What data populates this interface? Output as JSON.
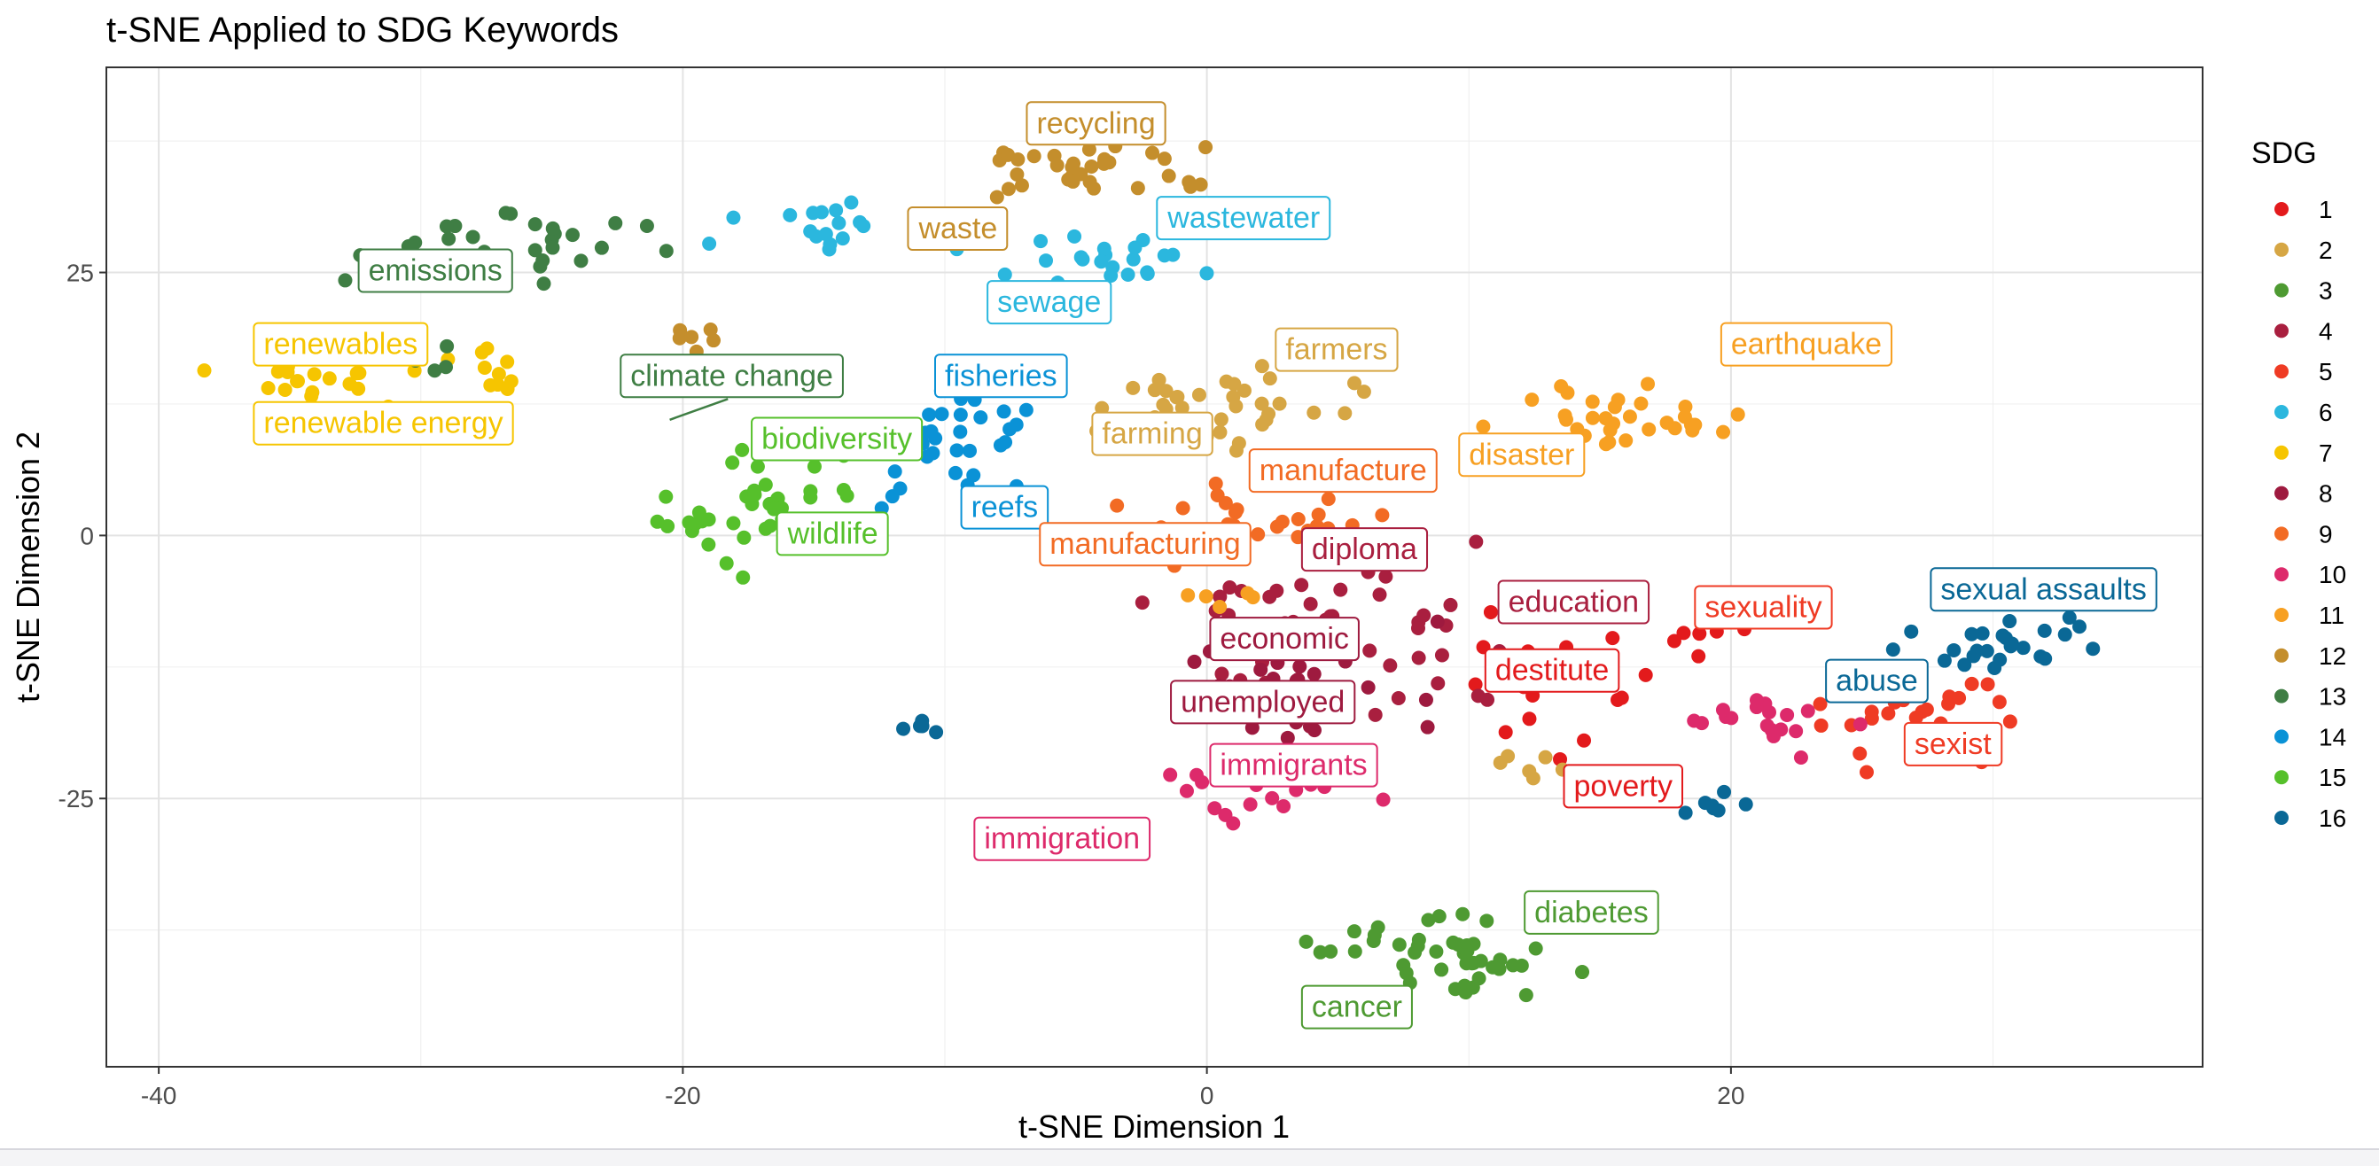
{
  "chart_data": {
    "type": "scatter",
    "title": "t-SNE Applied to SDG Keywords",
    "xlabel": "t-SNE Dimension 1",
    "ylabel": "t-SNE Dimension 2",
    "xlim": [
      -42,
      38
    ],
    "ylim": [
      -50.5,
      44.5
    ],
    "xticks": [
      -40,
      -20,
      0,
      20
    ],
    "yticks": [
      -25,
      0,
      25
    ],
    "x_tick_labels": [
      "-40",
      "-20",
      "0",
      "20"
    ],
    "y_tick_labels": [
      "-25",
      "0",
      "25"
    ],
    "grid": true,
    "legend": {
      "title": "SDG",
      "placement": "right"
    },
    "series": [
      {
        "name": "1",
        "color": "#e31a1c",
        "clusters": [
          {
            "cx": 13,
            "cy": -14,
            "sx": 3,
            "sy": 4,
            "n": 22
          },
          {
            "cx": 19,
            "cy": -10,
            "sx": 1,
            "sy": 1.5,
            "n": 6
          }
        ]
      },
      {
        "name": "2",
        "color": "#d6a644",
        "clusters": [
          {
            "cx": 1,
            "cy": 12,
            "sx": 3,
            "sy": 3,
            "n": 38
          },
          {
            "cx": 12,
            "cy": -22,
            "sx": 1.5,
            "sy": 1,
            "n": 6
          }
        ]
      },
      {
        "name": "3",
        "color": "#4e9a32",
        "clusters": [
          {
            "cx": 9,
            "cy": -40,
            "sx": 3,
            "sy": 2.8,
            "n": 45
          }
        ]
      },
      {
        "name": "4",
        "color": "#a91f3f",
        "clusters": [
          {
            "cx": 4,
            "cy": -9,
            "sx": 5,
            "sy": 5,
            "n": 55
          }
        ]
      },
      {
        "name": "5",
        "color": "#ef3b24",
        "clusters": [
          {
            "cx": 26,
            "cy": -18,
            "sx": 3,
            "sy": 3,
            "n": 28
          }
        ]
      },
      {
        "name": "6",
        "color": "#2bb7de",
        "clusters": [
          {
            "cx": -14,
            "cy": 29,
            "sx": 2.5,
            "sy": 2,
            "n": 18
          },
          {
            "cx": -4,
            "cy": 26,
            "sx": 3,
            "sy": 2,
            "n": 22
          }
        ]
      },
      {
        "name": "7",
        "color": "#f6c500",
        "clusters": [
          {
            "cx": -34,
            "cy": 15,
            "sx": 2.5,
            "sy": 2,
            "n": 20
          },
          {
            "cx": -27,
            "cy": 16,
            "sx": 1.5,
            "sy": 1.5,
            "n": 10
          }
        ]
      },
      {
        "name": "8",
        "color": "#9e1a3f",
        "clusters": [
          {
            "cx": 3,
            "cy": -14,
            "sx": 3.5,
            "sy": 4,
            "n": 30
          }
        ]
      },
      {
        "name": "9",
        "color": "#f26b24",
        "clusters": [
          {
            "cx": 2,
            "cy": 1,
            "sx": 3,
            "sy": 2.5,
            "n": 30
          }
        ]
      },
      {
        "name": "10",
        "color": "#dd2a6b",
        "clusters": [
          {
            "cx": 2,
            "cy": -24,
            "sx": 3.5,
            "sy": 2,
            "n": 24
          },
          {
            "cx": 21,
            "cy": -18,
            "sx": 3,
            "sy": 2.5,
            "n": 18
          }
        ]
      },
      {
        "name": "11",
        "color": "#f7a022",
        "clusters": [
          {
            "cx": 16,
            "cy": 11,
            "sx": 3.5,
            "sy": 2.5,
            "n": 32
          },
          {
            "cx": 1,
            "cy": -6,
            "sx": 1.5,
            "sy": 1.5,
            "n": 6
          }
        ]
      },
      {
        "name": "12",
        "color": "#c48e2c",
        "clusters": [
          {
            "cx": -6,
            "cy": 35,
            "sx": 3.5,
            "sy": 2.5,
            "n": 36
          },
          {
            "cx": -20,
            "cy": 19,
            "sx": 1,
            "sy": 1,
            "n": 6
          }
        ]
      },
      {
        "name": "13",
        "color": "#3f7e44",
        "clusters": [
          {
            "cx": -27,
            "cy": 27,
            "sx": 4,
            "sy": 2.5,
            "n": 34
          },
          {
            "cx": -30,
            "cy": 17,
            "sx": 1,
            "sy": 2,
            "n": 6
          }
        ]
      },
      {
        "name": "14",
        "color": "#0a92d6",
        "clusters": [
          {
            "cx": -10,
            "cy": 8,
            "sx": 2.5,
            "sy": 4,
            "n": 38
          }
        ]
      },
      {
        "name": "15",
        "color": "#56c02b",
        "clusters": [
          {
            "cx": -17,
            "cy": 2,
            "sx": 3,
            "sy": 4,
            "n": 40
          }
        ]
      },
      {
        "name": "16",
        "color": "#0a6896",
        "clusters": [
          {
            "cx": 30,
            "cy": -10,
            "sx": 3,
            "sy": 2.5,
            "n": 26
          },
          {
            "cx": -11,
            "cy": -18,
            "sx": 1,
            "sy": 1,
            "n": 5
          },
          {
            "cx": 19,
            "cy": -26,
            "sx": 1.5,
            "sy": 1,
            "n": 7
          }
        ]
      }
    ],
    "labels": [
      {
        "text": "recycling",
        "x": -6.5,
        "y": 39,
        "sdg": "12"
      },
      {
        "text": "waste",
        "x": -11,
        "y": 29,
        "sdg": "12"
      },
      {
        "text": "wastewater",
        "x": -1.5,
        "y": 30,
        "sdg": "6"
      },
      {
        "text": "sewage",
        "x": -8,
        "y": 22,
        "sdg": "6"
      },
      {
        "text": "emissions",
        "x": -32,
        "y": 25,
        "sdg": "13"
      },
      {
        "text": "renewables",
        "x": -36,
        "y": 18,
        "sdg": "7"
      },
      {
        "text": "climate change",
        "x": -22,
        "y": 15,
        "sdg": "13",
        "lx": -20.5,
        "ly": 11
      },
      {
        "text": "renewable energy",
        "x": -36,
        "y": 10.5,
        "sdg": "7"
      },
      {
        "text": "fisheries",
        "x": -10,
        "y": 15,
        "sdg": "14"
      },
      {
        "text": "farmers",
        "x": 3,
        "y": 17.5,
        "sdg": "2"
      },
      {
        "text": "earthquake",
        "x": 20,
        "y": 18,
        "sdg": "11"
      },
      {
        "text": "biodiversity",
        "x": -17,
        "y": 9,
        "sdg": "15"
      },
      {
        "text": "farming",
        "x": -4,
        "y": 9.5,
        "sdg": "2"
      },
      {
        "text": "manufacture",
        "x": 2,
        "y": 6,
        "sdg": "9"
      },
      {
        "text": "disaster",
        "x": 10,
        "y": 7.5,
        "sdg": "11"
      },
      {
        "text": "reefs",
        "x": -9,
        "y": 2.5,
        "sdg": "14"
      },
      {
        "text": "wildlife",
        "x": -16,
        "y": 0,
        "sdg": "15"
      },
      {
        "text": "manufacturing",
        "x": -6,
        "y": -1,
        "sdg": "9"
      },
      {
        "text": "diploma",
        "x": 4,
        "y": -1.5,
        "sdg": "4"
      },
      {
        "text": "education",
        "x": 11.5,
        "y": -6.5,
        "sdg": "4"
      },
      {
        "text": "sexuality",
        "x": 19,
        "y": -7,
        "sdg": "5"
      },
      {
        "text": "sexual assaults",
        "x": 28,
        "y": -5.3,
        "sdg": "16"
      },
      {
        "text": "economic",
        "x": 0.5,
        "y": -10,
        "sdg": "8"
      },
      {
        "text": "destitute",
        "x": 11,
        "y": -13,
        "sdg": "1"
      },
      {
        "text": "abuse",
        "x": 24,
        "y": -14,
        "sdg": "16"
      },
      {
        "text": "unemployed",
        "x": -1,
        "y": -16,
        "sdg": "8"
      },
      {
        "text": "sexist",
        "x": 27,
        "y": -20,
        "sdg": "5"
      },
      {
        "text": "immigrants",
        "x": 0.5,
        "y": -22,
        "sdg": "10"
      },
      {
        "text": "poverty",
        "x": 14,
        "y": -24,
        "sdg": "1"
      },
      {
        "text": "immigration",
        "x": -8.5,
        "y": -29,
        "sdg": "10"
      },
      {
        "text": "diabetes",
        "x": 12.5,
        "y": -36,
        "sdg": "3"
      },
      {
        "text": "cancer",
        "x": 4,
        "y": -45,
        "sdg": "3"
      }
    ]
  }
}
